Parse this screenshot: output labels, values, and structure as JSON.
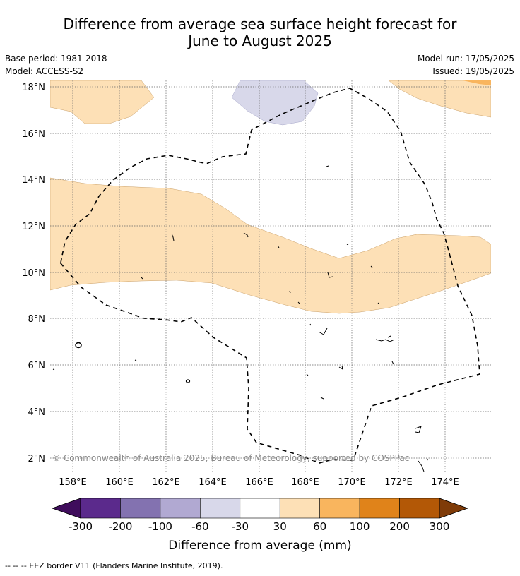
{
  "title": {
    "line1": "Difference from average sea surface height forecast for",
    "line2": "June to August 2025"
  },
  "meta": {
    "base_period": "Base period: 1981-2018",
    "model": "Model: ACCESS-S2",
    "model_run": "Model run: 17/05/2025",
    "issued": "Issued: 19/05/2025"
  },
  "map": {
    "lat_labels": [
      "18°N",
      "16°N",
      "14°N",
      "12°N",
      "10°N",
      "8°N",
      "6°N",
      "4°N",
      "2°N"
    ],
    "lon_labels": [
      "158°E",
      "160°E",
      "162°E",
      "164°E",
      "166°E",
      "168°E",
      "170°E",
      "172°E",
      "174°E"
    ],
    "copyright": "© Commonwealth of Australia 2025, Bureau of Meteorology, supported by COSPPac"
  },
  "colorbar": {
    "tick_labels": [
      "-300",
      "-200",
      "-100",
      "-60",
      "-30",
      "30",
      "60",
      "100",
      "200",
      "300"
    ],
    "colors": [
      "#3f0d5c",
      "#5b2a8c",
      "#8372b0",
      "#b1a9d2",
      "#d8d8ea",
      "#ffffff",
      "#fde0b6",
      "#f9b55e",
      "#e0831a",
      "#b35806",
      "#7f3b08"
    ],
    "label": "Difference from average (mm)"
  },
  "footer": "--  --  -- EEZ border V11 (Flanders Marine Institute, 2019)."
}
